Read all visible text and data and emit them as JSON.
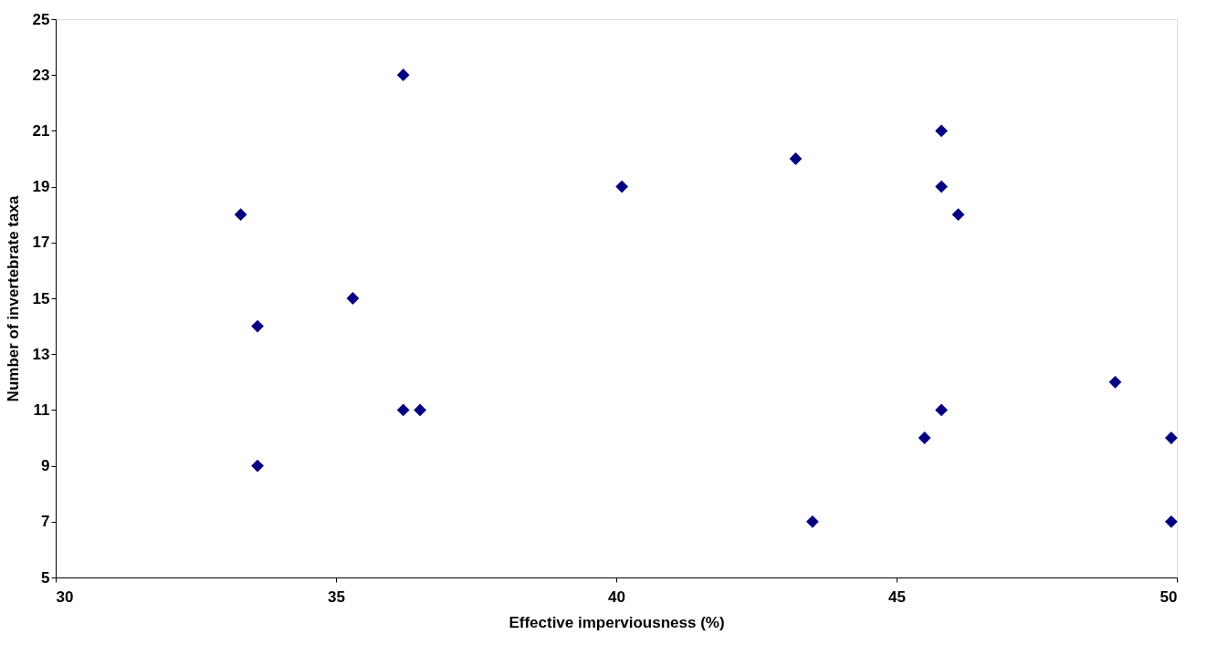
{
  "chart_data": {
    "type": "scatter",
    "xlabel": "Effective imperviousness (%)",
    "ylabel": "Number of invertebrate taxa",
    "x": [
      33.3,
      33.6,
      33.6,
      35.3,
      36.2,
      36.2,
      36.5,
      40.1,
      43.2,
      43.5,
      45.5,
      45.8,
      45.8,
      45.8,
      46.1,
      48.9,
      49.9,
      49.9
    ],
    "series": [
      {
        "color": "#000080",
        "values": [
          18,
          14,
          9,
          15,
          23,
          11,
          11,
          19,
          20,
          7,
          10,
          21,
          19,
          11,
          18,
          12,
          10,
          7
        ]
      }
    ],
    "xlim": [
      30,
      50
    ],
    "xticks": [
      30,
      35,
      40,
      45,
      50
    ],
    "ylim": [
      5,
      25
    ],
    "yticks": [
      5,
      7,
      9,
      11,
      13,
      15,
      17,
      19,
      21,
      23,
      25
    ],
    "marker": "diamond",
    "grid": false
  }
}
